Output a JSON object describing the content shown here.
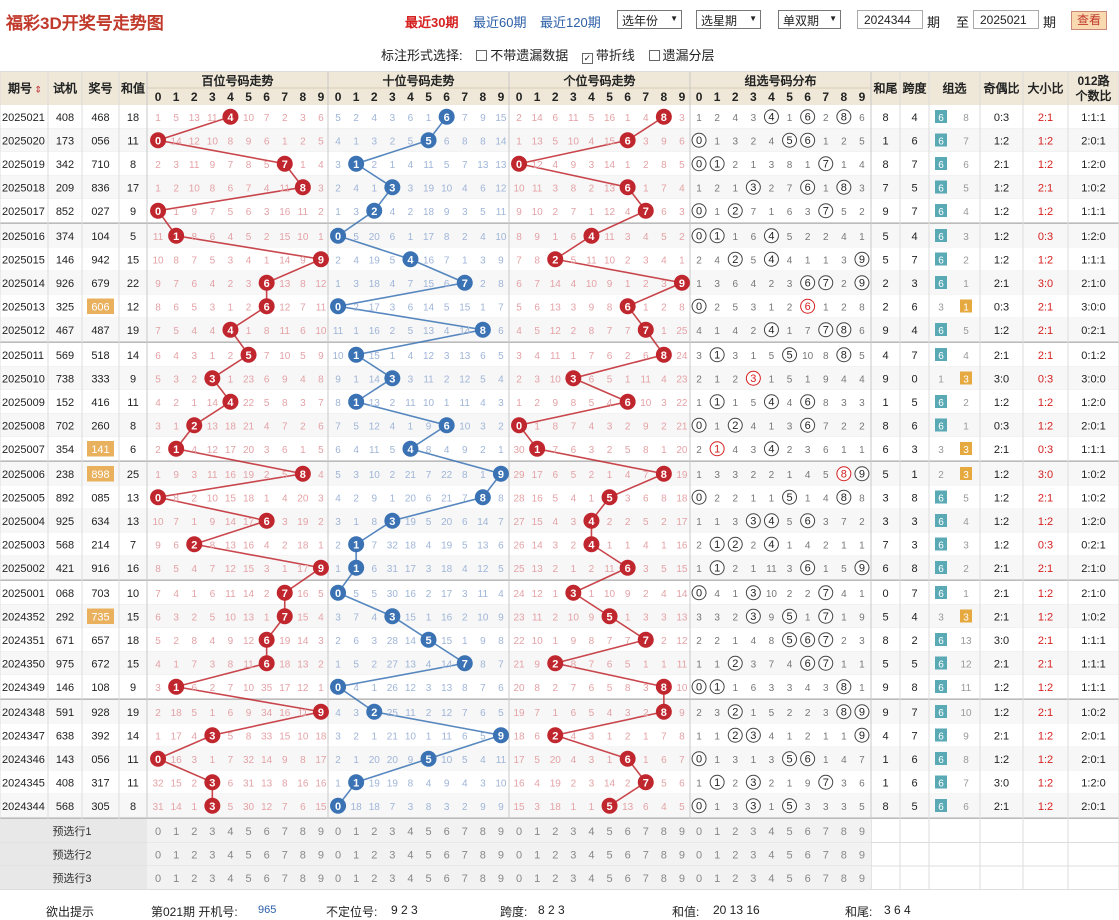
{
  "page": {
    "title": "福彩3D开奖号走势图"
  },
  "toolbar": {
    "range_links": [
      "最近30期",
      "最近60期",
      "最近120期"
    ],
    "active_range": "最近30期",
    "select_year": "选年份",
    "select_period": "选星期",
    "select_parity": "单双期",
    "from_value": "2024344",
    "period_unit": "期",
    "to_label": "至",
    "to_value": "2025021",
    "query_button": "查看"
  },
  "display_options": {
    "label": "标注形式选择:",
    "items": [
      {
        "label": "不带遗漏数据",
        "checked": false
      },
      {
        "label": "带折线",
        "checked": true
      },
      {
        "label": "遗漏分层",
        "checked": false
      }
    ]
  },
  "colors": {
    "red": "#c0262d",
    "blue": "#3a72b4",
    "header_bg": "#efe8d8",
    "group_bg": "#5aaab6",
    "alt_row": "#f7f7f7"
  },
  "table": {
    "headers": [
      "期号",
      "试机",
      "奖号",
      "和值",
      "百位号码走势",
      "十位号码走势",
      "个位号码走势",
      "组选号码分布",
      "和尾",
      "跨度",
      "组选",
      "奇偶比",
      "大小比",
      "012路个数比"
    ],
    "sort_icon": "sort-icon",
    "rows": [
      {
        "issue": "2025021",
        "test": "408",
        "draw": "468",
        "sum": "18",
        "tail": "8",
        "span": "4",
        "group": "6",
        "gmiss": "8",
        "oe": "0:3",
        "bs": "2:1",
        "r012": "1:1:1",
        "test_hl": false,
        "miss": [
          "1 5 13 11 4 10 7 2 3 6",
          "5 2 4 3 6 1 6 7 9 15",
          "2 14 6 11 5 16 1 4 8 3",
          "1 2 4 3 4 1 6 2 8 6"
        ]
      },
      {
        "issue": "2025020",
        "test": "173",
        "draw": "056",
        "sum": "11",
        "tail": "1",
        "span": "6",
        "group": "6",
        "gmiss": "7",
        "oe": "1:2",
        "bs": "1:2",
        "r012": "2:0:1",
        "test_hl": false,
        "miss": [
          "0 14 12 10 8 9 6 1 2 5",
          "4 1 3 2 5 12 6 8 8 14",
          "1 13 5 10 4 15 6 3 9 6",
          "0 1 3 2 4 5 6 1 2 5"
        ]
      },
      {
        "issue": "2025019",
        "test": "342",
        "draw": "710",
        "sum": "8",
        "tail": "8",
        "span": "7",
        "group": "6",
        "gmiss": "6",
        "oe": "2:1",
        "bs": "1:2",
        "r012": "1:2:0",
        "test_hl": false,
        "miss": [
          "2 3 11 9 7 8 5 7 1 4",
          "3 1 2 1 4 11 5 7 13 13",
          "0 12 4 9 3 14 1 2 8 5",
          "0 1 2 1 3 8 1 7 1 4"
        ]
      },
      {
        "issue": "2025018",
        "test": "209",
        "draw": "836",
        "sum": "17",
        "tail": "7",
        "span": "5",
        "group": "6",
        "gmiss": "5",
        "oe": "1:2",
        "bs": "2:1",
        "r012": "1:0:2",
        "test_hl": false,
        "miss": [
          "1 2 10 8 6 7 4 11 8 3",
          "2 4 1 3 3 19 10 4 6 12",
          "10 11 3 8 2 13 6 1 7 4",
          "1 2 1 3 2 7 6 1 8 3"
        ]
      },
      {
        "issue": "2025017",
        "test": "852",
        "draw": "027",
        "sum": "9",
        "tail": "9",
        "span": "7",
        "group": "6",
        "gmiss": "4",
        "oe": "1:2",
        "bs": "1:2",
        "r012": "1:1:1",
        "test_hl": false,
        "miss": [
          "0 1 9 7 5 6 3 16 11 2",
          "1 3 2 4 2 18 9 3 5 11",
          "9 10 2 7 1 12 4 7 6 3",
          "0 1 2 7 1 6 3 7 5 2"
        ]
      },
      {
        "issue": "2025016",
        "test": "374",
        "draw": "104",
        "sum": "5",
        "tail": "5",
        "span": "4",
        "group": "6",
        "gmiss": "3",
        "oe": "1:2",
        "bs": "0:3",
        "r012": "1:2:0",
        "test_hl": false,
        "miss": [
          "11 1 8 6 4 5 2 15 10 1",
          "0 5 20 6 1 17 8 2 4 10",
          "8 9 1 6 4 11 3 4 5 2",
          "0 1 1 6 4 5 2 2 4 1"
        ]
      },
      {
        "issue": "2025015",
        "test": "146",
        "draw": "942",
        "sum": "15",
        "tail": "5",
        "span": "7",
        "group": "6",
        "gmiss": "2",
        "oe": "1:2",
        "bs": "1:2",
        "r012": "1:1:1",
        "test_hl": false,
        "miss": [
          "10 8 7 5 3 4 1 14 9 9",
          "2 4 19 5 4 16 7 1 3 9",
          "7 8 2 5 11 10 2 3 4 1",
          "2 4 2 5 4 4 1 1 3 9"
        ]
      },
      {
        "issue": "2025014",
        "test": "926",
        "draw": "679",
        "sum": "22",
        "tail": "2",
        "span": "3",
        "group": "6",
        "gmiss": "1",
        "oe": "2:1",
        "bs": "3:0",
        "r012": "2:1:0",
        "test_hl": false,
        "miss": [
          "9 7 6 4 2 3 6 13 8 12",
          "1 3 18 4 7 15 6 7 2 8",
          "6 7 14 4 10 9 1 2 3 9",
          "1 3 6 4 2 3 6 7 2 9"
        ]
      },
      {
        "issue": "2025013",
        "test": "325",
        "draw": "606",
        "sum": "12",
        "tail": "2",
        "span": "6",
        "group": "1",
        "gmiss": "3",
        "oe": "0:3",
        "bs": "2:1",
        "r012": "3:0:0",
        "test_hl": true,
        "miss": [
          "8 6 5 3 1 2 6 12 7 11",
          "0 2 17 3 6 14 5 15 1 7",
          "5 6 13 3 9 8 6 1 2 8",
          "0 2 5 3 1 2 6 1 2 8"
        ]
      },
      {
        "issue": "2025012",
        "test": "467",
        "draw": "487",
        "sum": "19",
        "tail": "9",
        "span": "4",
        "group": "6",
        "gmiss": "5",
        "oe": "1:2",
        "bs": "2:1",
        "r012": "0:2:1",
        "test_hl": false,
        "miss": [
          "7 5 4 4 8 1 8 11 6 10",
          "11 1 16 2 5 13 4 14 8 6",
          "4 5 12 2 8 7 7 7 1 25",
          "4 1 4 2 4 1 7 7 8 6"
        ]
      },
      {
        "issue": "2025011",
        "test": "569",
        "draw": "518",
        "sum": "14",
        "tail": "4",
        "span": "7",
        "group": "6",
        "gmiss": "4",
        "oe": "2:1",
        "bs": "2:1",
        "r012": "0:1:2",
        "test_hl": false,
        "miss": [
          "6 4 3 1 2 5 7 10 5 9",
          "10 1 15 1 4 12 3 13 6 5",
          "3 4 11 1 7 6 2 6 8 24",
          "3 1 3 1 5 2 10 8 5 5"
        ]
      },
      {
        "issue": "2025010",
        "test": "738",
        "draw": "333",
        "sum": "9",
        "tail": "9",
        "span": "0",
        "group": "3",
        "gmiss": "1",
        "oe": "3:0",
        "bs": "0:3",
        "r012": "3:0:0",
        "test_hl": false,
        "miss": [
          "5 3 2 3 1 23 6 9 4 8",
          "9 1 14 3 3 11 2 12 5 4",
          "2 3 10 3 6 5 1 11 4 23",
          "2 1 2 3 1 5 1 9 4 4"
        ]
      },
      {
        "issue": "2025009",
        "test": "152",
        "draw": "416",
        "sum": "11",
        "tail": "1",
        "span": "5",
        "group": "6",
        "gmiss": "2",
        "oe": "1:2",
        "bs": "1:2",
        "r012": "1:2:0",
        "test_hl": false,
        "miss": [
          "4 2 1 14 4 22 5 8 3 7",
          "8 1 13 2 11 10 1 11 4 3",
          "1 2 9 8 5 4 6 10 3 22",
          "1 1 1 5 4 4 6 8 3 3"
        ]
      },
      {
        "issue": "2025008",
        "test": "702",
        "draw": "260",
        "sum": "8",
        "tail": "8",
        "span": "6",
        "group": "6",
        "gmiss": "1",
        "oe": "0:3",
        "bs": "1:2",
        "r012": "2:0:1",
        "test_hl": false,
        "miss": [
          "3 1 2 13 18 21 4 7 2 6",
          "7 5 12 4 1 9 6 10 3 2",
          "0 1 8 7 4 3 2 9 2 21",
          "0 1 2 4 1 3 6 7 2 2"
        ]
      },
      {
        "issue": "2025007",
        "test": "354",
        "draw": "141",
        "sum": "6",
        "tail": "6",
        "span": "3",
        "group": "3",
        "gmiss": "3",
        "oe": "2:1",
        "bs": "0:3",
        "r012": "1:1:1",
        "test_hl": true,
        "miss": [
          "2 1 4 12 17 20 3 6 1 5",
          "6 4 11 5 4 8 4 9 2 1",
          "30 1 7 6 3 2 5 8 1 20",
          "2 1 4 3 4 2 3 6 1 1"
        ]
      },
      {
        "issue": "2025006",
        "test": "238",
        "draw": "898",
        "sum": "25",
        "tail": "5",
        "span": "1",
        "group": "3",
        "gmiss": "2",
        "oe": "1:2",
        "bs": "3:0",
        "r012": "1:0:2",
        "test_hl": true,
        "miss": [
          "1 9 3 11 16 19 2 5 8 4",
          "5 3 10 2 21 7 22 8 1 9",
          "29 17 6 5 2 1 4 7 8 19",
          "1 3 3 2 2 1 4 5 8 9"
        ]
      },
      {
        "issue": "2025005",
        "test": "892",
        "draw": "085",
        "sum": "13",
        "tail": "3",
        "span": "8",
        "group": "6",
        "gmiss": "5",
        "oe": "1:2",
        "bs": "2:1",
        "r012": "1:0:2",
        "test_hl": false,
        "miss": [
          "0 8 2 10 15 18 1 4 20 3",
          "4 2 9 1 20 6 21 7 8 8",
          "28 16 5 4 1 5 3 6 8 18",
          "0 2 2 1 1 5 1 4 8 8"
        ]
      },
      {
        "issue": "2025004",
        "test": "925",
        "draw": "634",
        "sum": "13",
        "tail": "3",
        "span": "3",
        "group": "6",
        "gmiss": "4",
        "oe": "1:2",
        "bs": "1:2",
        "r012": "1:2:0",
        "test_hl": false,
        "miss": [
          "10 7 1 9 14 17 6 3 19 2",
          "3 1 8 3 19 5 20 6 14 7",
          "27 15 4 3 4 2 2 5 2 17",
          "1 1 3 3 4 5 6 3 7 2"
        ]
      },
      {
        "issue": "2025003",
        "test": "568",
        "draw": "214",
        "sum": "7",
        "tail": "7",
        "span": "3",
        "group": "6",
        "gmiss": "3",
        "oe": "1:2",
        "bs": "0:3",
        "r012": "0:2:1",
        "test_hl": false,
        "miss": [
          "9 6 2 8 13 16 4 2 18 1",
          "2 1 7 32 18 4 19 5 13 6",
          "26 14 3 2 4 1 1 4 1 16",
          "2 1 2 2 4 1 4 2 1 1"
        ]
      },
      {
        "issue": "2025002",
        "test": "421",
        "draw": "916",
        "sum": "16",
        "tail": "6",
        "span": "8",
        "group": "6",
        "gmiss": "2",
        "oe": "2:1",
        "bs": "2:1",
        "r012": "2:1:0",
        "test_hl": false,
        "miss": [
          "8 5 4 7 12 15 3 1 17 9",
          "1 1 6 31 17 3 18 4 12 5",
          "25 13 2 1 2 11 6 3 5 15",
          "1 1 2 1 11 3 6 1 5 9"
        ]
      },
      {
        "issue": "2025001",
        "test": "068",
        "draw": "703",
        "sum": "10",
        "tail": "0",
        "span": "7",
        "group": "6",
        "gmiss": "1",
        "oe": "2:1",
        "bs": "1:2",
        "r012": "2:1:0",
        "test_hl": false,
        "miss": [
          "7 4 1 6 11 14 2 7 16 5",
          "0 5 5 30 16 2 17 3 11 4",
          "24 12 1 3 1 10 9 2 4 14",
          "0 4 1 3 10 2 2 7 4 1"
        ]
      },
      {
        "issue": "2024352",
        "test": "292",
        "draw": "735",
        "sum": "15",
        "tail": "5",
        "span": "4",
        "group": "3",
        "gmiss": "3",
        "oe": "2:1",
        "bs": "1:2",
        "r012": "1:0:2",
        "test_hl": true,
        "miss": [
          "6 3 2 5 10 13 1 20 15 4",
          "3 7 4 29 15 1 16 2 10 9",
          "23 11 2 10 9 8 1 3 3 13",
          "3 3 2 5 9 1 1 1 1 9"
        ]
      },
      {
        "issue": "2024351",
        "test": "671",
        "draw": "657",
        "sum": "18",
        "tail": "8",
        "span": "2",
        "group": "6",
        "gmiss": "13",
        "oe": "3:0",
        "bs": "2:1",
        "r012": "1:1:1",
        "test_hl": false,
        "miss": [
          "5 2 8 4 9 12 6 19 14 3",
          "2 6 3 28 14 5 15 1 9 8",
          "22 10 1 9 8 7 7 2 2 12",
          "2 2 1 4 8 5 6 7 2 3"
        ]
      },
      {
        "issue": "2024350",
        "test": "975",
        "draw": "672",
        "sum": "15",
        "tail": "5",
        "span": "5",
        "group": "6",
        "gmiss": "12",
        "oe": "2:1",
        "bs": "2:1",
        "r012": "1:1:1",
        "test_hl": false,
        "miss": [
          "4 1 7 3 8 11 6 18 13 2",
          "1 5 2 27 13 4 14 7 8 7",
          "21 9 2 8 7 6 5 1 1 11",
          "1 1 2 3 7 4 6 7 1 1"
        ]
      },
      {
        "issue": "2024349",
        "test": "146",
        "draw": "108",
        "sum": "9",
        "tail": "9",
        "span": "8",
        "group": "6",
        "gmiss": "11",
        "oe": "1:2",
        "bs": "1:2",
        "r012": "1:1:1",
        "test_hl": false,
        "miss": [
          "3 1 6 2 7 10 35 17 12 1",
          "0 4 1 26 12 3 13 8 7 6",
          "20 8 2 7 6 5 8 3 8 10",
          "0 1 1 6 3 3 4 3 8 1"
        ]
      },
      {
        "issue": "2024348",
        "test": "591",
        "draw": "928",
        "sum": "19",
        "tail": "9",
        "span": "7",
        "group": "6",
        "gmiss": "10",
        "oe": "1:2",
        "bs": "2:1",
        "r012": "1:0:2",
        "test_hl": false,
        "miss": [
          "2 18 5 1 6 9 34 16 11 9",
          "4 3 2 25 11 2 12 7 6 5",
          "19 7 1 6 5 4 3 2 8 9",
          "2 3 2 1 5 2 2 3 8 9"
        ]
      },
      {
        "issue": "2024347",
        "test": "638",
        "draw": "392",
        "sum": "14",
        "tail": "4",
        "span": "7",
        "group": "6",
        "gmiss": "9",
        "oe": "2:1",
        "bs": "1:2",
        "r012": "2:0:1",
        "test_hl": false,
        "miss": [
          "1 17 4 3 5 8 33 15 10 18",
          "3 2 1 21 10 1 11 6 5 9",
          "18 6 2 4 3 1 2 1 7 8",
          "1 1 2 3 4 1 2 1 1 9"
        ]
      },
      {
        "issue": "2024346",
        "test": "143",
        "draw": "056",
        "sum": "11",
        "tail": "1",
        "span": "6",
        "group": "6",
        "gmiss": "8",
        "oe": "1:2",
        "bs": "1:2",
        "r012": "2:0:1",
        "test_hl": false,
        "miss": [
          "0 16 3 1 7 32 14 9 8 17",
          "2 1 20 20 9 5 10 5 4 11",
          "17 5 20 4 3 1 6 1 6 7",
          "0 1 3 1 3 5 6 1 4 7"
        ]
      },
      {
        "issue": "2024345",
        "test": "408",
        "draw": "317",
        "sum": "11",
        "tail": "1",
        "span": "6",
        "group": "6",
        "gmiss": "7",
        "oe": "3:0",
        "bs": "1:2",
        "r012": "1:2:0",
        "test_hl": false,
        "miss": [
          "32 15 2 3 6 31 13 8 16 16",
          "1 1 19 19 8 4 9 4 3 10",
          "16 4 19 2 3 14 2 7 5 6",
          "1 1 2 3 2 1 9 7 3 6"
        ]
      },
      {
        "issue": "2024344",
        "test": "568",
        "draw": "305",
        "sum": "8",
        "tail": "8",
        "span": "5",
        "group": "6",
        "gmiss": "6",
        "oe": "2:1",
        "bs": "1:2",
        "r012": "2:0:1",
        "test_hl": false,
        "miss": [
          "31 14 1 3 5 30 12 7 6 15",
          "0 18 18 7 3 8 3 2 9 9",
          "15 3 18 1 1 5 13 6 4 5",
          "0 1 3 3 1 5 3 3 3 5"
        ]
      }
    ],
    "preselect_rows": [
      "预选行1",
      "预选行2",
      "预选行3"
    ]
  },
  "footer": {
    "hint_label": "欲出提示",
    "issue_info": "第021期 开机号:",
    "issue_value": "965",
    "unfixed_label": "不定位号:",
    "unfixed_value": "9 2 3",
    "span_label": "跨度:",
    "span_value": "8 2 3",
    "sum_label": "和值:",
    "sum_value": "20 13 16",
    "tail_label": "和尾:",
    "tail_value": "3 6 4"
  }
}
